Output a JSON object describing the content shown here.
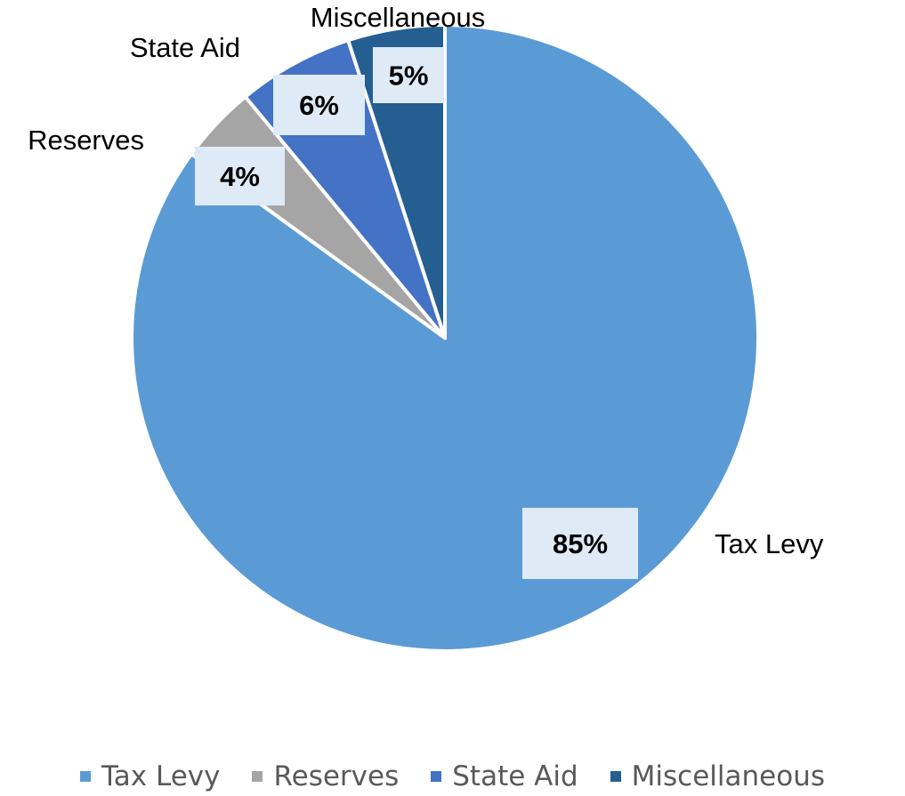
{
  "chart_data": {
    "type": "pie",
    "categories": [
      "Tax Levy",
      "Reserves",
      "State Aid",
      "Miscellaneous"
    ],
    "values": [
      85,
      4,
      6,
      5
    ],
    "data_labels": [
      "85%",
      "4%",
      "6%",
      "5%"
    ],
    "colors": [
      "#5B9BD5",
      "#A5A5A5",
      "#4472C4",
      "#255E91"
    ],
    "start_angle_deg": 0,
    "direction": "clockwise",
    "label_box_color": "#DEEBF7",
    "legend_position": "bottom",
    "title": ""
  }
}
